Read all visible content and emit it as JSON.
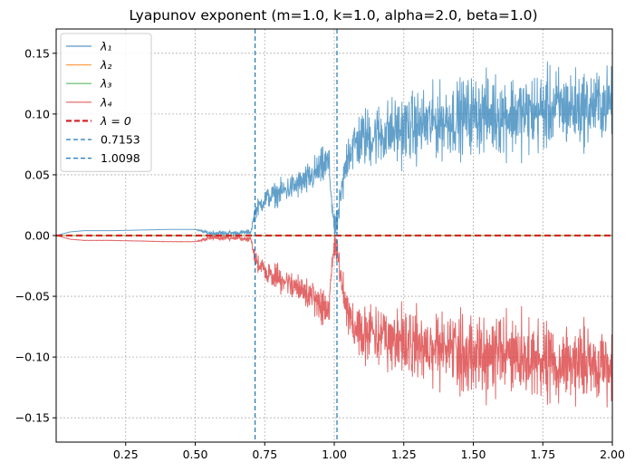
{
  "chart_data": {
    "type": "line",
    "title": "Lyapunov exponent (m=1.0, k=1.0, alpha=2.0, beta=1.0)",
    "xlabel": "",
    "ylabel": "",
    "xlim": [
      0.0,
      2.0
    ],
    "ylim": [
      -0.17,
      0.17
    ],
    "xticks": [
      0.25,
      0.5,
      0.75,
      1.0,
      1.25,
      1.5,
      1.75,
      2.0
    ],
    "xtick_labels": [
      "0.25",
      "0.50",
      "0.75",
      "1.00",
      "1.25",
      "1.50",
      "1.75",
      "2.00"
    ],
    "yticks": [
      0.15,
      0.1,
      0.05,
      0.0,
      -0.05,
      -0.1,
      -0.15
    ],
    "ytick_labels": [
      "0.15",
      "0.10",
      "0.05",
      "0.00",
      "−0.05",
      "−0.10",
      "−0.15"
    ],
    "grid": true,
    "legend_position": "upper-left",
    "legend": [
      {
        "label": "λ₁",
        "color": "#1f77b4",
        "style": "solid"
      },
      {
        "label": "λ₂",
        "color": "#ff7f0e",
        "style": "solid"
      },
      {
        "label": "λ₃",
        "color": "#2ca02c",
        "style": "solid"
      },
      {
        "label": "λ₄",
        "color": "#d62728",
        "style": "solid"
      },
      {
        "label": "λ = 0",
        "color": "#d62728",
        "style": "dashed-thick"
      },
      {
        "label": "0.7153",
        "color": "#1f77b4",
        "style": "dashed"
      },
      {
        "label": "1.0098",
        "color": "#1f77b4",
        "style": "dashed"
      }
    ],
    "vlines": [
      {
        "x": 0.7153,
        "color": "#1f77b4"
      },
      {
        "x": 1.0098,
        "color": "#1f77b4"
      }
    ],
    "hline": {
      "y": 0.0,
      "color": "#d62728"
    },
    "envelope_x": [
      0.0,
      0.05,
      0.1,
      0.2,
      0.3,
      0.4,
      0.5,
      0.55,
      0.6,
      0.65,
      0.7,
      0.7153,
      0.75,
      0.8,
      0.85,
      0.9,
      0.95,
      0.98,
      1.0,
      1.0098,
      1.05,
      1.1,
      1.2,
      1.3,
      1.4,
      1.5,
      1.6,
      1.7,
      1.8,
      1.9,
      2.0
    ],
    "lambda1_mean": [
      0.0,
      0.003,
      0.004,
      0.004,
      0.0045,
      0.005,
      0.005,
      0.002,
      0.002,
      0.002,
      0.003,
      0.02,
      0.03,
      0.035,
      0.04,
      0.045,
      0.055,
      0.06,
      0.005,
      0.01,
      0.07,
      0.08,
      0.085,
      0.09,
      0.095,
      0.1,
      0.1,
      0.1,
      0.105,
      0.105,
      0.11
    ],
    "lambda1_spread": [
      0.0,
      0.0,
      0.0,
      0.0,
      0.0,
      0.0,
      0.0,
      0.002,
      0.002,
      0.002,
      0.002,
      0.006,
      0.008,
      0.009,
      0.01,
      0.012,
      0.014,
      0.015,
      0.01,
      0.01,
      0.02,
      0.022,
      0.025,
      0.026,
      0.027,
      0.028,
      0.03,
      0.03,
      0.03,
      0.028,
      0.025
    ],
    "series": [
      {
        "name": "λ₁",
        "color": "#1f77b4",
        "sign": 1
      },
      {
        "name": "λ₂",
        "color": "#ff7f0e",
        "sign": 0
      },
      {
        "name": "λ₃",
        "color": "#2ca02c",
        "sign": 0
      },
      {
        "name": "λ₄",
        "color": "#d62728",
        "sign": -1
      }
    ]
  }
}
